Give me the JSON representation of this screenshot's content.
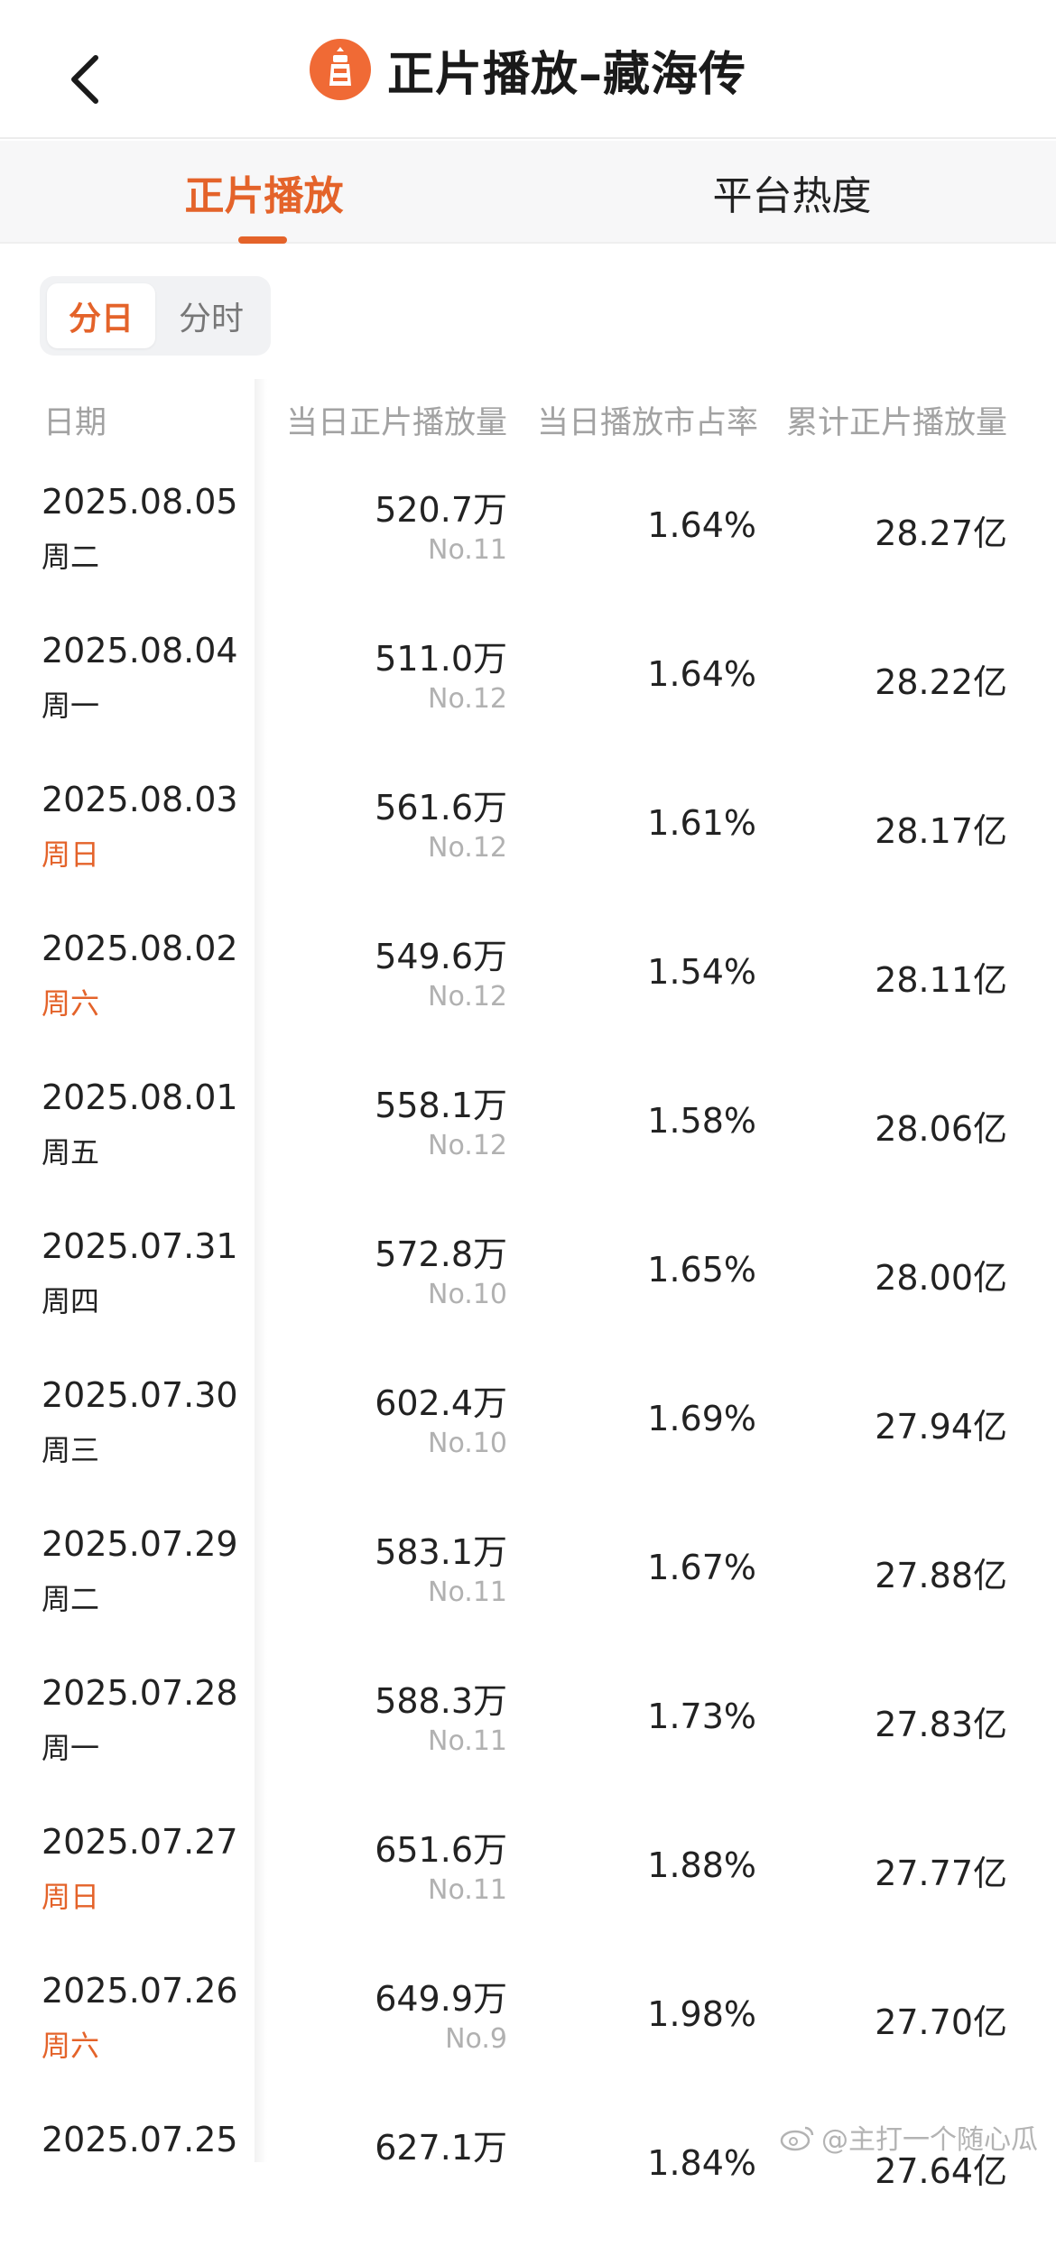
{
  "header": {
    "title": "正片播放–藏海传"
  },
  "tabs": [
    {
      "label": "正片播放",
      "active": true
    },
    {
      "label": "平台热度",
      "active": false
    }
  ],
  "segment": {
    "options": [
      "分日",
      "分时"
    ],
    "selected": "分日"
  },
  "table": {
    "columns": [
      "日期",
      "当日正片播放量",
      "当日播放市占率",
      "累计正片播放量"
    ],
    "rows": [
      {
        "date": "2025.08.05",
        "weekday": "周二",
        "daily": "520.7万",
        "rank": "No.11",
        "share": "1.64%",
        "total": "28.27亿"
      },
      {
        "date": "2025.08.04",
        "weekday": "周一",
        "daily": "511.0万",
        "rank": "No.12",
        "share": "1.64%",
        "total": "28.22亿"
      },
      {
        "date": "2025.08.03",
        "weekday": "周日",
        "daily": "561.6万",
        "rank": "No.12",
        "share": "1.61%",
        "total": "28.17亿"
      },
      {
        "date": "2025.08.02",
        "weekday": "周六",
        "daily": "549.6万",
        "rank": "No.12",
        "share": "1.54%",
        "total": "28.11亿"
      },
      {
        "date": "2025.08.01",
        "weekday": "周五",
        "daily": "558.1万",
        "rank": "No.12",
        "share": "1.58%",
        "total": "28.06亿"
      },
      {
        "date": "2025.07.31",
        "weekday": "周四",
        "daily": "572.8万",
        "rank": "No.10",
        "share": "1.65%",
        "total": "28.00亿"
      },
      {
        "date": "2025.07.30",
        "weekday": "周三",
        "daily": "602.4万",
        "rank": "No.10",
        "share": "1.69%",
        "total": "27.94亿"
      },
      {
        "date": "2025.07.29",
        "weekday": "周二",
        "daily": "583.1万",
        "rank": "No.11",
        "share": "1.67%",
        "total": "27.88亿"
      },
      {
        "date": "2025.07.28",
        "weekday": "周一",
        "daily": "588.3万",
        "rank": "No.11",
        "share": "1.73%",
        "total": "27.83亿"
      },
      {
        "date": "2025.07.27",
        "weekday": "周日",
        "daily": "651.6万",
        "rank": "No.11",
        "share": "1.88%",
        "total": "27.77亿"
      },
      {
        "date": "2025.07.26",
        "weekday": "周六",
        "daily": "649.9万",
        "rank": "No.9",
        "share": "1.98%",
        "total": "27.70亿"
      },
      {
        "date": "2025.07.25",
        "weekday": "",
        "daily": "627.1万",
        "rank": "",
        "share": "1.84%",
        "total": "27.64亿"
      }
    ]
  },
  "watermark": "@主打一个随心瓜",
  "colors": {
    "accent": "#e4632a",
    "weekend": "#e4632a",
    "muted": "#a2a2a2"
  },
  "icons": {
    "back": "chevron-left-icon",
    "logo": "lighthouse-logo-icon",
    "watermark": "weibo-icon"
  }
}
